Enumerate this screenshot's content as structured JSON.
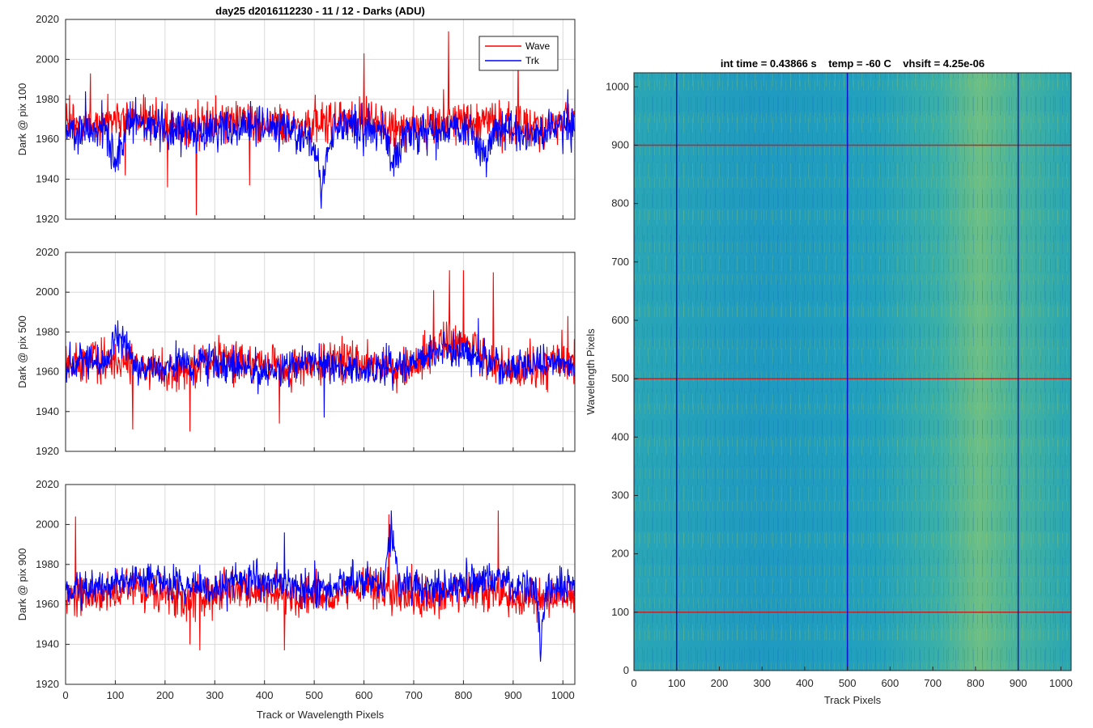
{
  "colors": {
    "wave": "#ff0000",
    "trk": "#0000ff",
    "hline": "#d81b1b",
    "vline": "#1010d0",
    "axis": "#262626",
    "grid": "#d9d9d9"
  },
  "chart_data": [
    {
      "type": "line",
      "title": "day25 d2016112230 - 11 / 12 - Darks (ADU)",
      "xlabel": "",
      "ylabel": "Dark @ pix 100",
      "xlim": [
        0,
        1024
      ],
      "ylim": [
        1920,
        2020
      ],
      "xticks": [
        0,
        100,
        200,
        300,
        400,
        500,
        600,
        700,
        800,
        900,
        1000
      ],
      "yticks": [
        1920,
        1940,
        1960,
        1980,
        2000,
        2020
      ],
      "grid": true,
      "legend": {
        "position": "top-right",
        "entries": [
          "Wave",
          "Trk"
        ]
      },
      "series": [
        {
          "name": "Wave",
          "color": "#ff0000",
          "mean": 1968,
          "noise": 7,
          "seed": 11,
          "spikes": [
            [
              263,
              1922
            ],
            [
              770,
              2014
            ],
            [
              600,
              2003
            ],
            [
              910,
              2002
            ],
            [
              205,
              1936
            ],
            [
              50,
              1993
            ],
            [
              370,
              1937
            ],
            [
              760,
              1985
            ],
            [
              120,
              1942
            ]
          ]
        },
        {
          "name": "Trk",
          "color": "#0000ff",
          "mean": 1965,
          "noise": 7,
          "seed": 23,
          "dips": [
            [
              515,
              1932,
              22
            ],
            [
              100,
              1940,
              20
            ],
            [
              660,
              1946,
              25
            ],
            [
              840,
              1946,
              30
            ]
          ],
          "spikes": [
            [
              1010,
              1985
            ],
            [
              40,
              1984
            ]
          ]
        }
      ]
    },
    {
      "type": "line",
      "title": "",
      "xlabel": "",
      "ylabel": "Dark @ pix 500",
      "xlim": [
        0,
        1024
      ],
      "ylim": [
        1920,
        2020
      ],
      "xticks": [
        0,
        100,
        200,
        300,
        400,
        500,
        600,
        700,
        800,
        900,
        1000
      ],
      "yticks": [
        1920,
        1940,
        1960,
        1980,
        2000,
        2020
      ],
      "grid": true,
      "series": [
        {
          "name": "Wave",
          "color": "#ff0000",
          "mean": 1964,
          "noise": 7,
          "seed": 37,
          "bumps": [
            [
              700,
              860,
              10
            ]
          ],
          "spikes": [
            [
              772,
              2011
            ],
            [
              800,
              2011
            ],
            [
              860,
              2010
            ],
            [
              740,
              2001
            ],
            [
              135,
              1931
            ],
            [
              250,
              1930
            ],
            [
              430,
              1934
            ],
            [
              1010,
              1988
            ]
          ]
        },
        {
          "name": "Trk",
          "color": "#0000ff",
          "mean": 1963,
          "noise": 6,
          "seed": 51,
          "bumps": [
            [
              80,
              140,
              16
            ],
            [
              700,
              880,
              8
            ]
          ],
          "spikes": [
            [
              520,
              1937
            ],
            [
              830,
              1987
            ]
          ]
        }
      ]
    },
    {
      "type": "line",
      "title": "",
      "xlabel": "Track or Wavelength Pixels",
      "ylabel": "Dark @ pix 900",
      "xlim": [
        0,
        1024
      ],
      "ylim": [
        1920,
        2020
      ],
      "xticks": [
        0,
        100,
        200,
        300,
        400,
        500,
        600,
        700,
        800,
        900,
        1000
      ],
      "yticks": [
        1920,
        1940,
        1960,
        1980,
        2000,
        2020
      ],
      "grid": true,
      "series": [
        {
          "name": "Wave",
          "color": "#ff0000",
          "mean": 1965,
          "noise": 7,
          "seed": 67,
          "spikes": [
            [
              20,
              2004
            ],
            [
              870,
              2007
            ],
            [
              650,
              2005
            ],
            [
              270,
              1937
            ],
            [
              440,
              1937
            ],
            [
              250,
              1940
            ]
          ]
        },
        {
          "name": "Trk",
          "color": "#0000ff",
          "mean": 1970,
          "noise": 6,
          "seed": 79,
          "bumps": [
            [
              640,
              670,
              22
            ]
          ],
          "dips": [
            [
              955,
              1932,
              10
            ]
          ],
          "spikes": [
            [
              655,
              2007
            ],
            [
              440,
              1996
            ]
          ]
        }
      ]
    },
    {
      "type": "heatmap",
      "title": "int time = 0.43866 s    temp = -60 C    vhsift = 4.25e-06",
      "xlabel": "Track Pixels",
      "ylabel": "Wavelength Pixels",
      "xlim": [
        0,
        1024
      ],
      "ylim": [
        0,
        1024
      ],
      "xticks": [
        0,
        100,
        200,
        300,
        400,
        500,
        600,
        700,
        800,
        900,
        1000
      ],
      "yticks": [
        0,
        100,
        200,
        300,
        400,
        500,
        600,
        700,
        800,
        900,
        1000
      ],
      "colormap": "parula",
      "marker_rows": [
        100,
        500,
        900
      ],
      "marker_cols": [
        100,
        500,
        900
      ]
    }
  ]
}
